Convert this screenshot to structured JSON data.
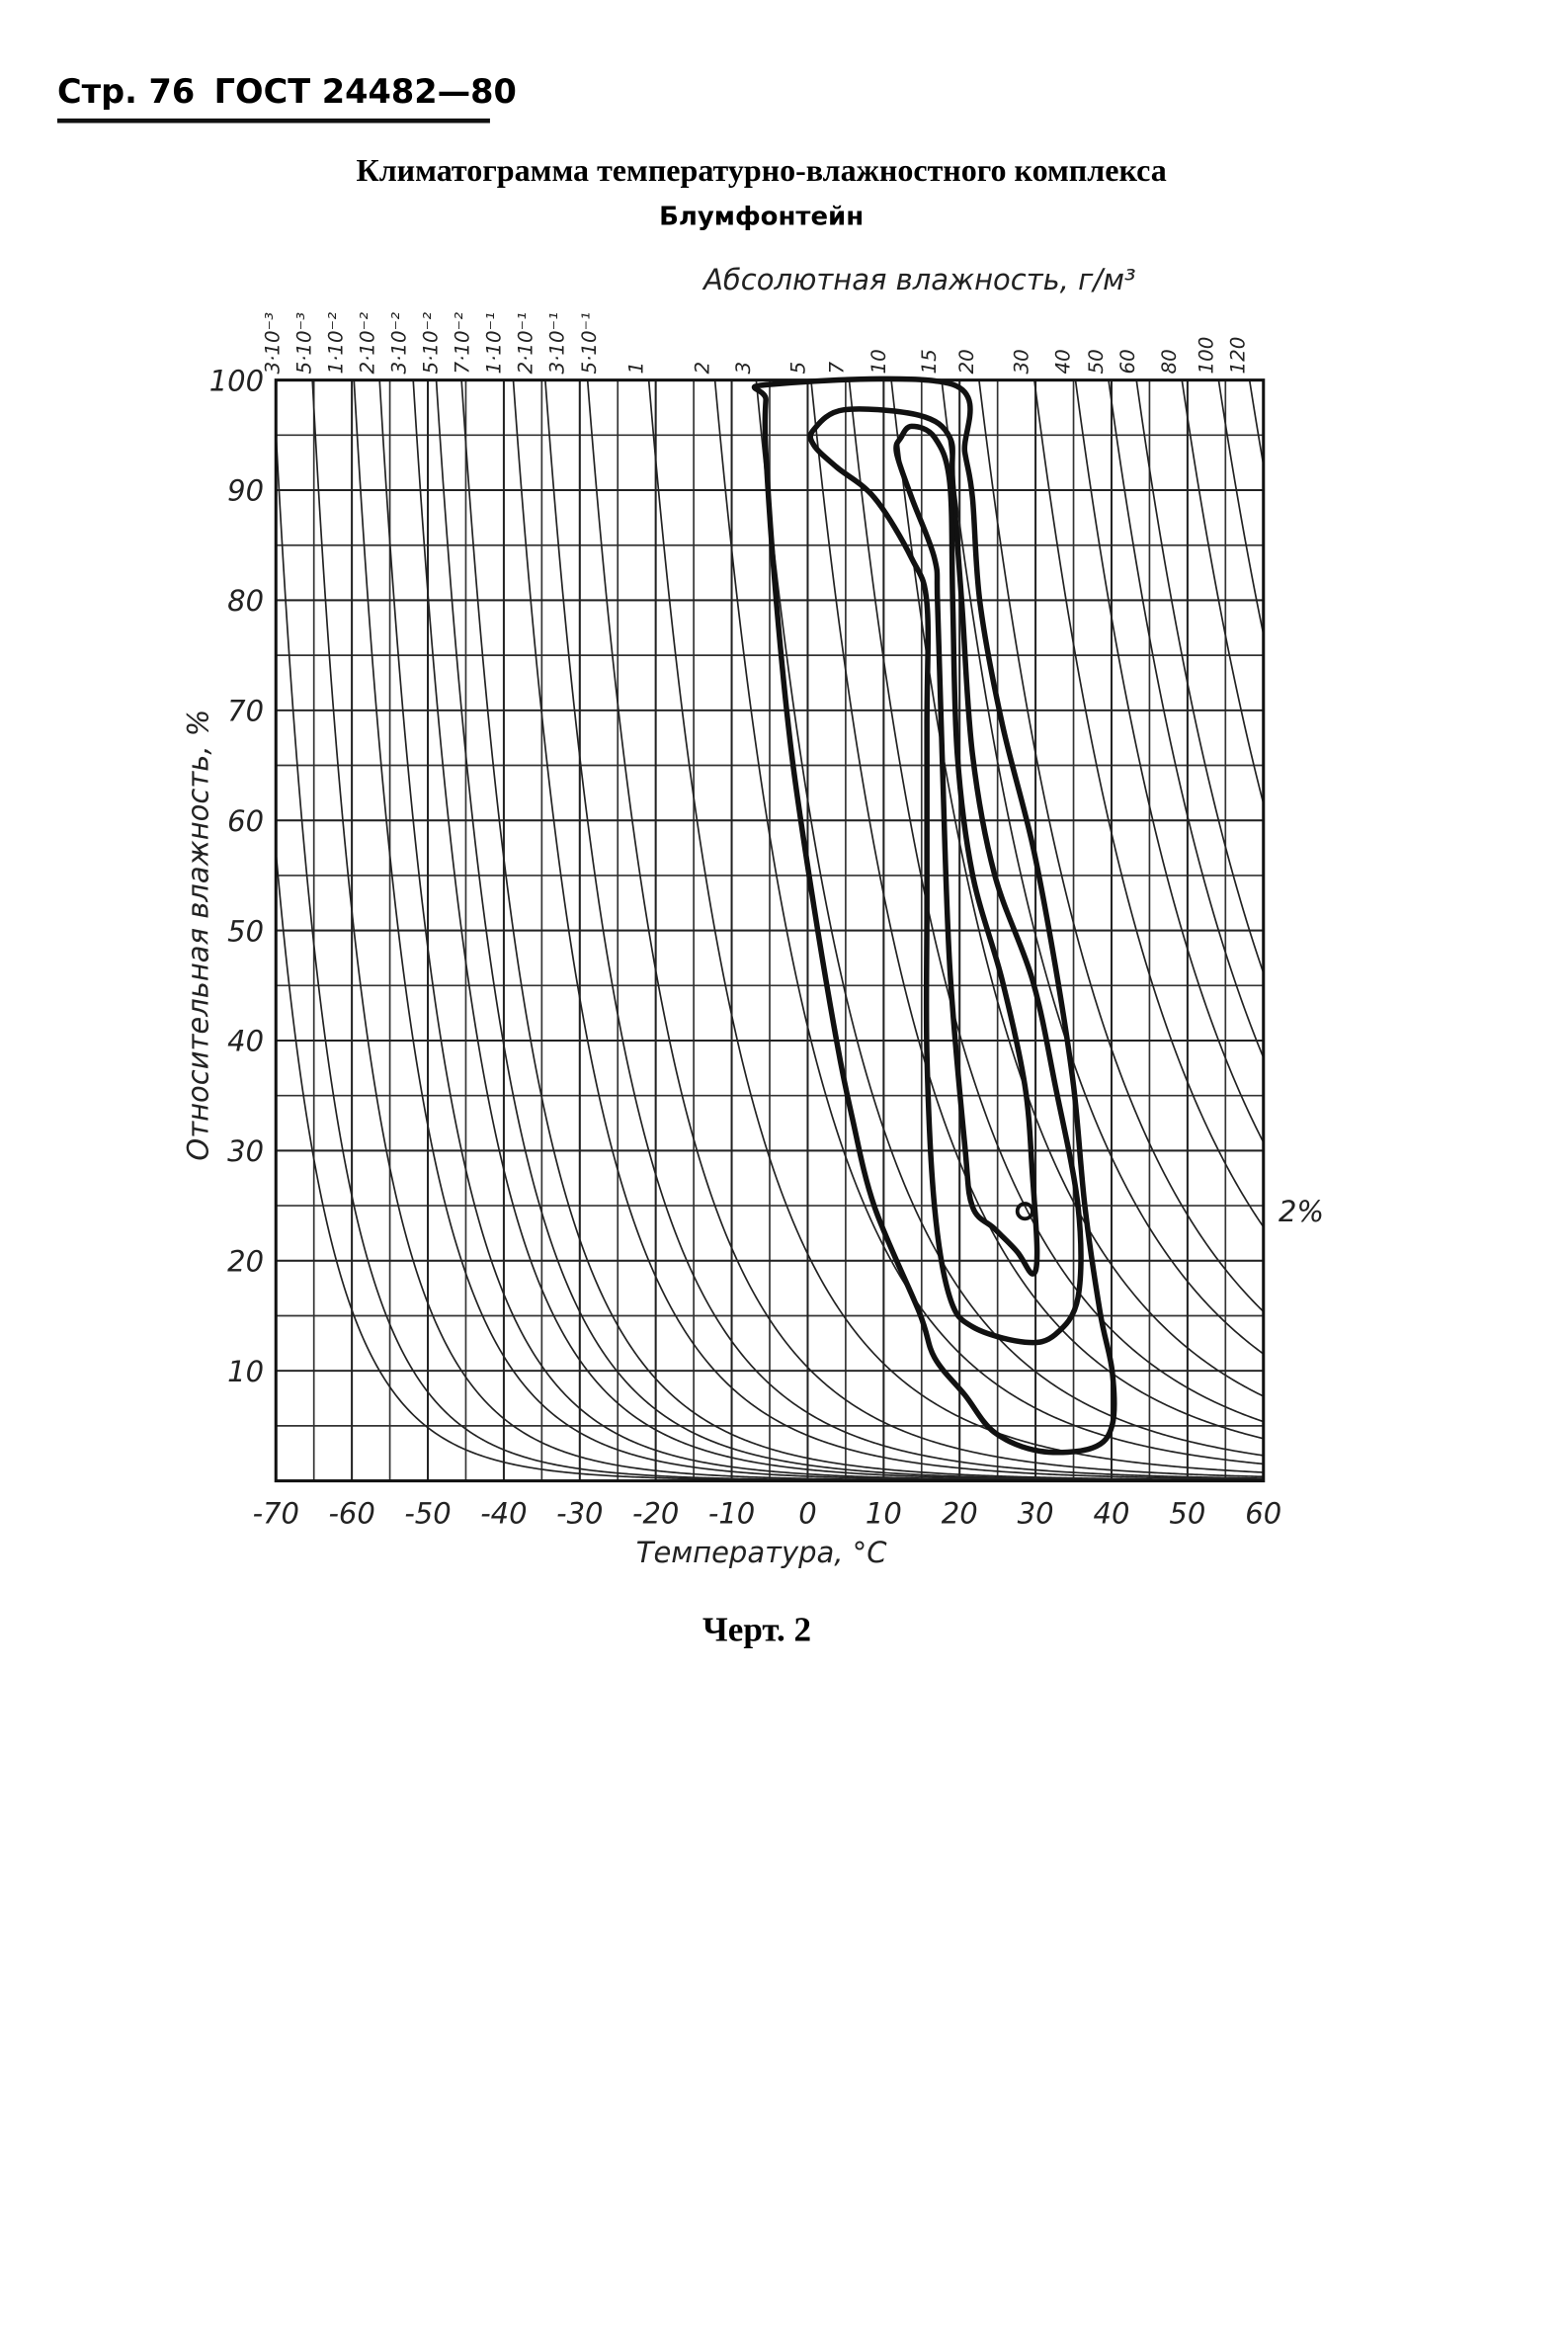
{
  "header": {
    "page": "Стр. 76",
    "standard": "ГОСТ 24482—80"
  },
  "chart_data": {
    "type": "climatogram",
    "title": "Климатограмма температурно-влажностного комплекса",
    "subtitle": "Блумфонтейн",
    "x_label": "Температура, °С",
    "y_label": "Относительная влажность, %",
    "top_label": "Абсолютная влажность, г/м³",
    "annotation": "2%",
    "xlim": [
      -70,
      60
    ],
    "xticks": [
      -70,
      -60,
      -50,
      -40,
      -30,
      -20,
      -10,
      0,
      10,
      20,
      30,
      40,
      50,
      60
    ],
    "ylim": [
      0,
      100
    ],
    "yticks": [
      10,
      20,
      30,
      40,
      50,
      60,
      70,
      80,
      90,
      100
    ],
    "grid": true,
    "isolines": [
      {
        "value": 0.003,
        "label": "3·10⁻³"
      },
      {
        "value": 0.005,
        "label": "5·10⁻³"
      },
      {
        "value": 0.01,
        "label": "1·10⁻²"
      },
      {
        "value": 0.02,
        "label": "2·10⁻²"
      },
      {
        "value": 0.03,
        "label": "3·10⁻²"
      },
      {
        "value": 0.05,
        "label": "5·10⁻²"
      },
      {
        "value": 0.07,
        "label": "7·10⁻²"
      },
      {
        "value": 0.1,
        "label": "1·10⁻¹"
      },
      {
        "value": 0.2,
        "label": "2·10⁻¹"
      },
      {
        "value": 0.3,
        "label": "3·10⁻¹"
      },
      {
        "value": 0.5,
        "label": "5·10⁻¹"
      },
      1,
      2,
      3,
      5,
      7,
      10,
      15,
      20,
      30,
      40,
      50,
      60,
      80,
      100,
      120
    ],
    "series": [
      {
        "color": "#111111",
        "x": [
          -5.1,
          19.1,
          20.7,
          21.7,
          22.7,
          25.6,
          29.6,
          32.6,
          35,
          36.5,
          38.5,
          40.1,
          40.1,
          37.5,
          30.6,
          24.6,
          20.7,
          16.7,
          14.7,
          8.8,
          5.8,
          3.8,
          0.8,
          -2.1,
          -4.1,
          -5.5,
          -5.5
        ],
        "values": [
          99.6,
          99.6,
          93.4,
          89.3,
          79.7,
          68.8,
          57.8,
          46.8,
          35.9,
          24.9,
          15.3,
          9.9,
          5.1,
          3,
          2.7,
          4.4,
          7.8,
          11.2,
          15.3,
          24.9,
          33.2,
          40,
          52.3,
          66,
          79.7,
          93.4,
          98.2
        ]
      },
      {
        "color": "#111111",
        "x": [
          0.8,
          4.8,
          14.7,
          18.7,
          19.1,
          20.3,
          21.7,
          24.6,
          29.6,
          32.6,
          35.6,
          35.6,
          32.6,
          28.6,
          21.7,
          18.7,
          16.7,
          15.7,
          15.7,
          15.7,
          15.7,
          13.7,
          8.8,
          3.8,
          0.8
        ],
        "values": [
          95.5,
          97.3,
          96.8,
          94.8,
          90.7,
          79.7,
          66,
          55.1,
          45.5,
          35.9,
          24.9,
          16.7,
          13.3,
          12.6,
          14,
          16.7,
          24.9,
          38.6,
          52.3,
          68.8,
          79.7,
          83.8,
          89.3,
          92.1,
          94.1
        ]
      },
      {
        "color": "#111111",
        "x": [
          12.3,
          13.7,
          16.7,
          18.7,
          19.1,
          19.7,
          21.7,
          25.6,
          28.6,
          29.6,
          30.2,
          29.6,
          27.6,
          24.6,
          21.7,
          20.7,
          18.7,
          17.7,
          17.1,
          16.7,
          13.7,
          11.7
        ],
        "values": [
          94.8,
          95.8,
          94.8,
          90.7,
          79.7,
          66,
          55.1,
          45.5,
          35.9,
          27.7,
          20.8,
          18.8,
          20.8,
          22.9,
          24.9,
          30.4,
          46.8,
          66,
          79.7,
          83.8,
          89.3,
          93.4
        ]
      },
      {
        "color": "#111111",
        "x": [
          28.6
        ],
        "values": [
          24.5
        ]
      }
    ]
  },
  "caption": "Черт. 2"
}
